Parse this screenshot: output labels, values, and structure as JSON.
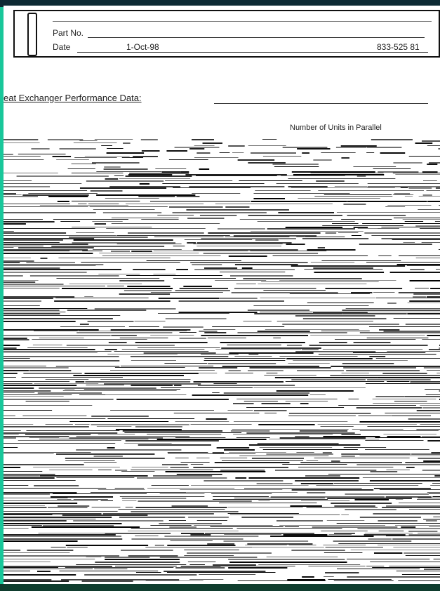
{
  "header": {
    "part_label": "Part No.",
    "date_label": "Date",
    "date": "1-Oct-98",
    "phone": "833-525 81"
  },
  "section": {
    "title": "eat Exchanger Performance Data:",
    "right_label": "Number of Units in Parallel"
  }
}
